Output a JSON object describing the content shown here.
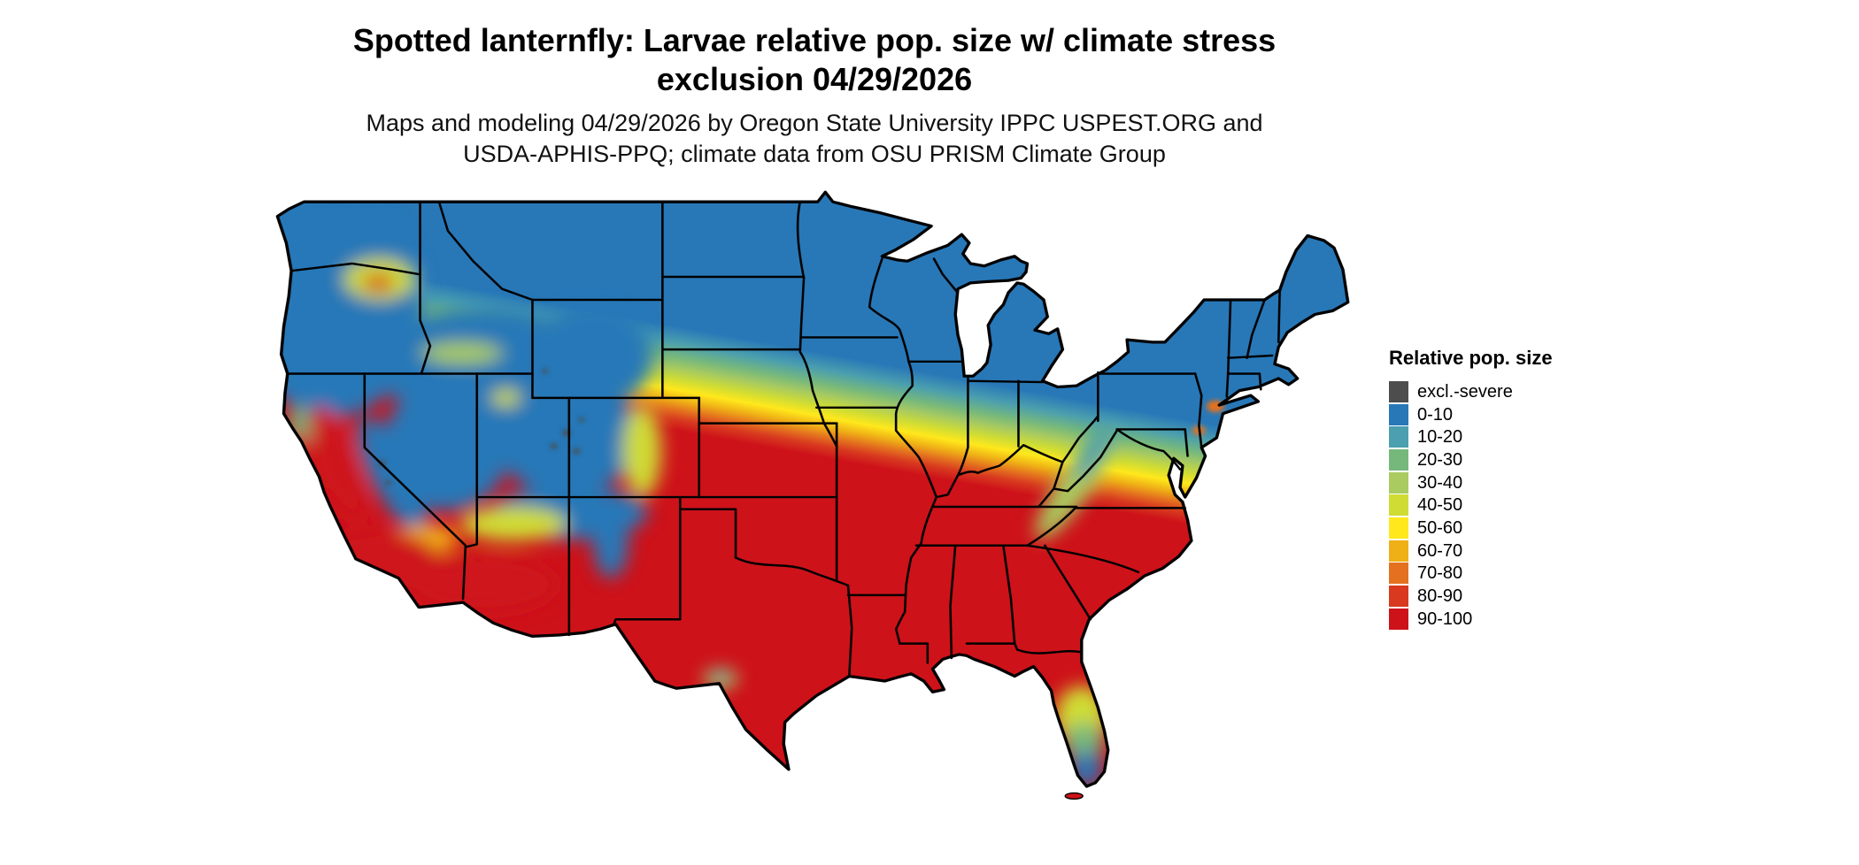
{
  "title": {
    "line1": "Spotted lanternfly: Larvae relative pop. size w/ climate stress",
    "line2": "exclusion 04/29/2026"
  },
  "subtitle": {
    "line1": "Maps and modeling 04/29/2026 by Oregon State University IPPC USPEST.ORG and",
    "line2": "USDA-APHIS-PPQ; climate data from OSU PRISM Climate Group"
  },
  "legend": {
    "title": "Relative pop. size",
    "entries": [
      {
        "label": "excl.-severe",
        "color": "#4d4d4d"
      },
      {
        "label": "0-10",
        "color": "#2878b8"
      },
      {
        "label": "10-20",
        "color": "#4b9fae"
      },
      {
        "label": "20-30",
        "color": "#76b87c"
      },
      {
        "label": "30-40",
        "color": "#a9cb5f"
      },
      {
        "label": "40-50",
        "color": "#cfdc34"
      },
      {
        "label": "50-60",
        "color": "#ffe81c"
      },
      {
        "label": "60-70",
        "color": "#efaf16"
      },
      {
        "label": "70-80",
        "color": "#e4711f"
      },
      {
        "label": "80-90",
        "color": "#d8391f"
      },
      {
        "label": "90-100",
        "color": "#ce121a"
      }
    ]
  },
  "map": {
    "region": "Continental United States",
    "depicts": "Relative population size of spotted lanternfly larvae with climate stress exclusion, shown as a colored raster with black state borders",
    "pattern": {
      "northern_states": "0-10 (blue) across the northern tier, Great Lakes and New England",
      "transition_band": "20-70 (green to orange) band across Nebraska, Iowa, northern Illinois/Indiana/Ohio and Maryland",
      "southern_states": "90-100 (red) across the South, Texas and the Southeast",
      "mountain_west": "0-10 over the Cascades, Sierra Nevada, Great Basin and Rockies with 90-100 in the California Central Valley, coastal California and the desert Southwest",
      "south_florida": "declines from 90-100 to 0-50 toward the southern tip"
    }
  }
}
